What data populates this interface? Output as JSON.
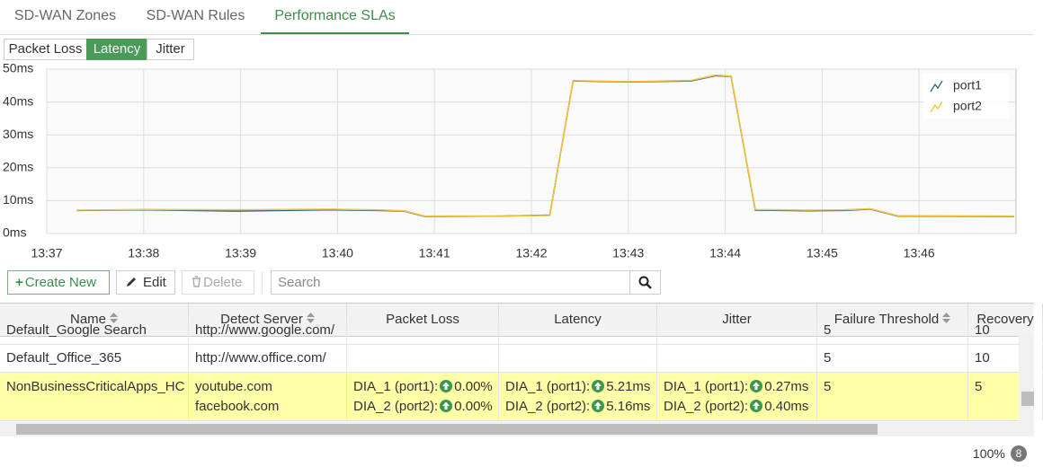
{
  "tabs": [
    "SD-WAN Zones",
    "SD-WAN Rules",
    "Performance SLAs"
  ],
  "active_tab": 2,
  "metric_buttons": [
    "Packet Loss",
    "Latency",
    "Jitter"
  ],
  "active_metric": 1,
  "chart_data": {
    "type": "line",
    "x": [
      817.31,
      818.0,
      818.93,
      819.94,
      820.41,
      820.69,
      820.9,
      821.7,
      822.19,
      822.43,
      823.0,
      823.65,
      823.9,
      824.06,
      824.31,
      824.85,
      825.22,
      825.5,
      825.78,
      826.98
    ],
    "series": [
      {
        "name": "port1",
        "color": "#2f5f8f",
        "values": [
          7.0,
          7.2,
          6.8,
          7.2,
          7.0,
          6.8,
          5.2,
          5.3,
          5.6,
          46.4,
          46.1,
          46.4,
          48.0,
          47.8,
          7.1,
          6.9,
          7.0,
          7.4,
          5.3,
          5.2
        ]
      },
      {
        "name": "port2",
        "color": "#f2c232",
        "values": [
          7.1,
          7.3,
          7.2,
          7.4,
          7.2,
          6.9,
          5.3,
          5.3,
          5.5,
          46.5,
          46.2,
          46.6,
          48.2,
          47.9,
          7.3,
          7.1,
          7.2,
          7.5,
          5.4,
          5.3
        ]
      }
    ],
    "xlim": [
      817,
      827
    ],
    "ylim": [
      0,
      50
    ],
    "xticks": [
      {
        "value": 817,
        "label": "13:37"
      },
      {
        "value": 818,
        "label": "13:38"
      },
      {
        "value": 819,
        "label": "13:39"
      },
      {
        "value": 820,
        "label": "13:40"
      },
      {
        "value": 821,
        "label": "13:41"
      },
      {
        "value": 822,
        "label": "13:42"
      },
      {
        "value": 823,
        "label": "13:43"
      },
      {
        "value": 824,
        "label": "13:44"
      },
      {
        "value": 825,
        "label": "13:45"
      },
      {
        "value": 826,
        "label": "13:46"
      }
    ],
    "yticks": [
      {
        "value": 0,
        "label": "0ms"
      },
      {
        "value": 10,
        "label": "10ms"
      },
      {
        "value": 20,
        "label": "20ms"
      },
      {
        "value": 30,
        "label": "30ms"
      },
      {
        "value": 40,
        "label": "40ms"
      },
      {
        "value": 50,
        "label": "50ms"
      }
    ],
    "grid": true,
    "legend": "top-right"
  },
  "toolbar": {
    "create": "Create New",
    "edit": "Edit",
    "delete": "Delete",
    "search_placeholder": "Search"
  },
  "table": {
    "columns": [
      {
        "label": "Name",
        "sortable": true
      },
      {
        "label": "Detect Server",
        "sortable": true
      },
      {
        "label": "Packet Loss",
        "sortable": false
      },
      {
        "label": "Latency",
        "sortable": false
      },
      {
        "label": "Jitter",
        "sortable": false
      },
      {
        "label": "Failure Threshold",
        "sortable": true
      },
      {
        "label": "Recovery",
        "sortable": false
      }
    ],
    "rows": [
      {
        "name": "Default_Google Search",
        "detect_server": [
          "http://www.google.com/"
        ],
        "failure_threshold": 5,
        "recovery": 10
      },
      {
        "name": "Default_Office_365",
        "detect_server": [
          "http://www.office.com/"
        ],
        "failure_threshold": 5,
        "recovery": 10
      },
      {
        "name": "NonBusinessCriticalApps_HC",
        "detect_server": [
          "youtube.com",
          "facebook.com"
        ],
        "highlight": true,
        "packet_loss": [
          {
            "label": "DIA_1 (port1):",
            "value": "0.00%"
          },
          {
            "label": "DIA_2 (port2):",
            "value": "0.00%"
          }
        ],
        "latency": [
          {
            "label": "DIA_1 (port1):",
            "value": "5.21ms"
          },
          {
            "label": "DIA_2 (port2):",
            "value": "5.16ms"
          }
        ],
        "jitter": [
          {
            "label": "DIA_1 (port1):",
            "value": "0.27ms"
          },
          {
            "label": "DIA_2 (port2):",
            "value": "0.40ms"
          }
        ],
        "failure_threshold": 5,
        "recovery": 5
      }
    ]
  },
  "footer": {
    "zoom": "100%",
    "count": "8"
  }
}
